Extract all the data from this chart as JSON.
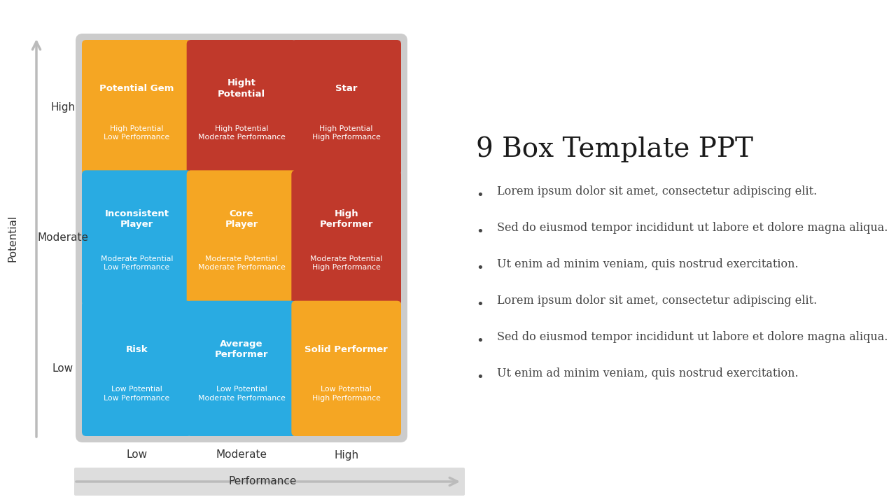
{
  "title": "9 Box Template PPT",
  "bullets": [
    "Lorem ipsum dolor sit amet, consectetur adipiscing elit.",
    "Sed do eiusmod tempor incididunt ut labore et dolore magna aliqua.",
    "Ut enim ad minim veniam, quis nostrud exercitation.",
    "Lorem ipsum dolor sit amet, consectetur adipiscing elit.",
    "Sed do eiusmod tempor incididunt ut labore et dolore magna aliqua.",
    "Ut enim ad minim veniam, quis nostrud exercitation."
  ],
  "grid_bg": "#cccccc",
  "boxes": [
    {
      "row": 2,
      "col": 0,
      "color": "#F5A623",
      "title": "Potential Gem",
      "sub": "High Potential\nLow Performance"
    },
    {
      "row": 2,
      "col": 1,
      "color": "#C0392B",
      "title": "Hight\nPotential",
      "sub": "High Potential\nModerate Performance"
    },
    {
      "row": 2,
      "col": 2,
      "color": "#C0392B",
      "title": "Star",
      "sub": "High Potential\nHigh Performance"
    },
    {
      "row": 1,
      "col": 0,
      "color": "#29ABE2",
      "title": "Inconsistent\nPlayer",
      "sub": "Moderate Potential\nLow Performance"
    },
    {
      "row": 1,
      "col": 1,
      "color": "#F5A623",
      "title": "Core\nPlayer",
      "sub": "Moderate Potential\nModerate Performance"
    },
    {
      "row": 1,
      "col": 2,
      "color": "#C0392B",
      "title": "High\nPerformer",
      "sub": "Moderate Potential\nHigh Performance"
    },
    {
      "row": 0,
      "col": 0,
      "color": "#29ABE2",
      "title": "Risk",
      "sub": "Low Potential\nLow Performance"
    },
    {
      "row": 0,
      "col": 1,
      "color": "#29ABE2",
      "title": "Average\nPerformer",
      "sub": "Low Potential\nModerate Performance"
    },
    {
      "row": 0,
      "col": 2,
      "color": "#F5A623",
      "title": "Solid Performer",
      "sub": "Low Potential\nHigh Performance"
    }
  ],
  "x_labels": [
    "Low",
    "Moderate",
    "High"
  ],
  "y_labels": [
    "Low",
    "Moderate",
    "High"
  ],
  "x_axis_label": "Performance",
  "y_axis_label": "Potential",
  "bg_color": "#ffffff",
  "arrow_color": "#bbbbbb",
  "perf_bar_color": "#dddddd"
}
